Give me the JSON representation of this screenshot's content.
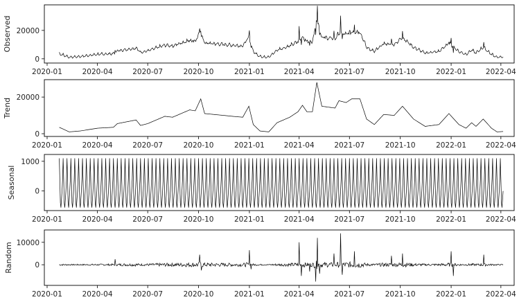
{
  "chart_data": {
    "type": "line",
    "title": "",
    "x_start": "2020-01-23",
    "x_end": "2022-04-05",
    "xlim": [
      "2019-12-27",
      "2022-04-25"
    ],
    "x_ticks": [
      "2020-01",
      "2020-04",
      "2020-07",
      "2020-10",
      "2021-01",
      "2021-04",
      "2021-07",
      "2021-10",
      "2022-01",
      "2022-04"
    ],
    "color": "#000000",
    "panels": [
      {
        "name": "Observed",
        "ylabel": "Observed",
        "ylim": [
          -3000,
          38000
        ],
        "y_ticks": [
          0,
          20000
        ]
      },
      {
        "name": "Trend",
        "ylabel": "Trend",
        "ylim": [
          -1500,
          29500
        ],
        "y_ticks": [
          0,
          20000
        ]
      },
      {
        "name": "Seasonal",
        "ylabel": "Seasonal",
        "ylim": [
          -660,
          1230
        ],
        "y_ticks": [
          0,
          1000
        ]
      },
      {
        "name": "Random",
        "ylabel": "Random",
        "ylim": [
          -9200,
          15500
        ],
        "y_ticks": [
          0,
          10000
        ]
      }
    ],
    "trend_keypoints": [
      [
        "2020-01-23",
        3500
      ],
      [
        "2020-02-10",
        1000
      ],
      [
        "2020-03-01",
        1500
      ],
      [
        "2020-04-01",
        3000
      ],
      [
        "2020-04-30",
        3500
      ],
      [
        "2020-05-07",
        5500
      ],
      [
        "2020-06-10",
        7500
      ],
      [
        "2020-06-18",
        4500
      ],
      [
        "2020-07-01",
        5500
      ],
      [
        "2020-08-01",
        9500
      ],
      [
        "2020-08-15",
        9000
      ],
      [
        "2020-09-15",
        13000
      ],
      [
        "2020-09-25",
        12500
      ],
      [
        "2020-10-05",
        19000
      ],
      [
        "2020-10-12",
        11000
      ],
      [
        "2020-11-15",
        10000
      ],
      [
        "2020-12-01",
        9500
      ],
      [
        "2020-12-20",
        9000
      ],
      [
        "2020-12-31",
        15000
      ],
      [
        "2021-01-08",
        5000
      ],
      [
        "2021-01-20",
        1500
      ],
      [
        "2021-02-05",
        1000
      ],
      [
        "2021-02-20",
        6000
      ],
      [
        "2021-03-15",
        9000
      ],
      [
        "2021-03-30",
        12000
      ],
      [
        "2021-04-07",
        15500
      ],
      [
        "2021-04-15",
        12000
      ],
      [
        "2021-04-25",
        12000
      ],
      [
        "2021-05-03",
        28000
      ],
      [
        "2021-05-12",
        15000
      ],
      [
        "2021-06-05",
        14000
      ],
      [
        "2021-06-12",
        18000
      ],
      [
        "2021-06-25",
        17000
      ],
      [
        "2021-07-05",
        19000
      ],
      [
        "2021-07-20",
        19000
      ],
      [
        "2021-08-01",
        8000
      ],
      [
        "2021-08-15",
        5000
      ],
      [
        "2021-09-01",
        10500
      ],
      [
        "2021-09-20",
        10000
      ],
      [
        "2021-10-05",
        15000
      ],
      [
        "2021-10-25",
        8000
      ],
      [
        "2021-11-15",
        4000
      ],
      [
        "2021-12-10",
        5000
      ],
      [
        "2021-12-28",
        11000
      ],
      [
        "2022-01-15",
        5000
      ],
      [
        "2022-01-28",
        3000
      ],
      [
        "2022-02-07",
        6000
      ],
      [
        "2022-02-15",
        4000
      ],
      [
        "2022-02-28",
        8000
      ],
      [
        "2022-03-15",
        3000
      ],
      [
        "2022-03-25",
        1000
      ],
      [
        "2022-04-05",
        1200
      ]
    ],
    "seasonal_weekly": [
      1100,
      400,
      -400,
      -560,
      -300,
      0,
      400
    ],
    "random_spikes": [
      [
        "2020-05-03",
        2500
      ],
      [
        "2020-10-03",
        4500
      ],
      [
        "2020-10-06",
        -2500
      ],
      [
        "2021-01-01",
        6500
      ],
      [
        "2021-01-04",
        -2000
      ],
      [
        "2021-04-01",
        10000
      ],
      [
        "2021-04-05",
        -5000
      ],
      [
        "2021-04-20",
        -3000
      ],
      [
        "2021-05-01",
        -7500
      ],
      [
        "2021-05-04",
        12000
      ],
      [
        "2021-05-08",
        -4000
      ],
      [
        "2021-06-03",
        5000
      ],
      [
        "2021-06-15",
        14000
      ],
      [
        "2021-06-18",
        -4500
      ],
      [
        "2021-07-10",
        6000
      ],
      [
        "2021-09-15",
        4000
      ],
      [
        "2021-10-05",
        5000
      ],
      [
        "2022-01-01",
        6000
      ],
      [
        "2022-01-05",
        -5000
      ],
      [
        "2022-03-01",
        4500
      ]
    ]
  }
}
